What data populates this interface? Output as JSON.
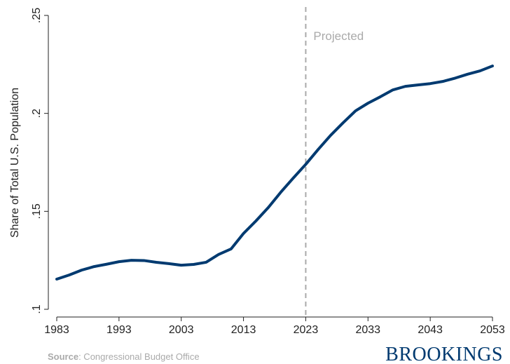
{
  "chart_data": {
    "type": "line",
    "ylabel": "Share of Total U.S. Population",
    "x": [
      1983,
      1985,
      1987,
      1989,
      1991,
      1993,
      1995,
      1997,
      1999,
      2001,
      2003,
      2005,
      2007,
      2009,
      2011,
      2013,
      2015,
      2017,
      2019,
      2021,
      2023,
      2025,
      2027,
      2029,
      2031,
      2033,
      2035,
      2037,
      2039,
      2041,
      2043,
      2045,
      2047,
      2049,
      2051,
      2053
    ],
    "series": [
      {
        "name": "Share",
        "color": "#003a70",
        "values": [
          0.1154,
          0.1175,
          0.12,
          0.1218,
          0.123,
          0.1243,
          0.125,
          0.1249,
          0.124,
          0.1233,
          0.1225,
          0.1229,
          0.124,
          0.128,
          0.1308,
          0.1387,
          0.1451,
          0.152,
          0.1598,
          0.167,
          0.174,
          0.1816,
          0.1888,
          0.1952,
          0.2013,
          0.2052,
          0.2085,
          0.212,
          0.2138,
          0.2145,
          0.2152,
          0.2163,
          0.218,
          0.22,
          0.2217,
          0.2242
        ]
      }
    ],
    "xlim": [
      1983,
      2053
    ],
    "xticks": [
      1983,
      1993,
      2003,
      2013,
      2023,
      2033,
      2043,
      2053
    ],
    "ylim": [
      0.1,
      0.25
    ],
    "yticks": [
      {
        "value": 0.1,
        "label": ".1"
      },
      {
        "value": 0.15,
        "label": ".15"
      },
      {
        "value": 0.2,
        "label": ".2"
      },
      {
        "value": 0.25,
        "label": ".25"
      }
    ],
    "vline": 2023,
    "annotation": "Projected",
    "source_label": "Source",
    "source_text": ": Congressional Budget Office",
    "brand": "BROOKINGS"
  }
}
